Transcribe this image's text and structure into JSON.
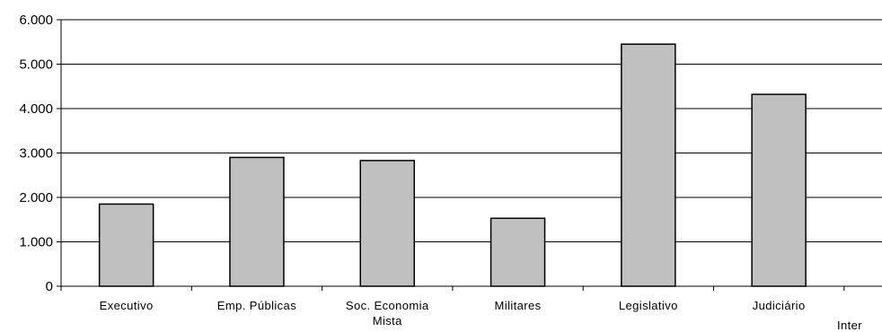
{
  "chart_data": {
    "type": "bar",
    "categories": [
      [
        "Executivo"
      ],
      [
        "Emp. Públicas"
      ],
      [
        "Soc. Economia",
        "Mista"
      ],
      [
        "Militares"
      ],
      [
        "Legislativo"
      ],
      [
        "Judiciário"
      ],
      [
        "Inter"
      ]
    ],
    "values": [
      1850,
      2900,
      2830,
      1530,
      5450,
      4320,
      null
    ],
    "y_ticks": [
      "0",
      "1.000",
      "2.000",
      "3.000",
      "4.000",
      "5.000",
      "6.000"
    ],
    "ylim": [
      0,
      6000
    ],
    "grid": true,
    "legend": "none",
    "colors": {
      "bar_fill": "#c0c0c0",
      "bar_stroke": "#000000",
      "grid": "#000000"
    }
  }
}
